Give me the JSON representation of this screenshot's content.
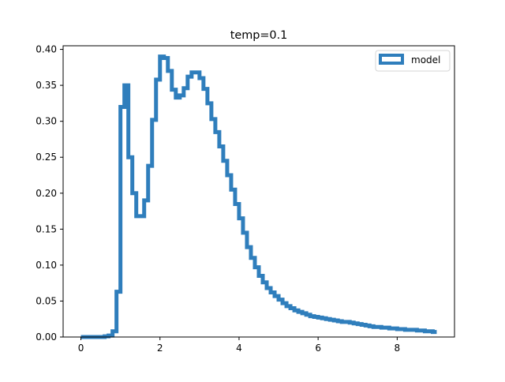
{
  "chart_data": {
    "type": "line",
    "style": "step-histogram",
    "title": "temp=0.1",
    "xlabel": "",
    "ylabel": "",
    "xlim": [
      -0.45,
      9.45
    ],
    "ylim": [
      0,
      0.405
    ],
    "xticks": [
      0,
      2,
      4,
      6,
      8
    ],
    "yticks": [
      0.0,
      0.05,
      0.1,
      0.15,
      0.2,
      0.25,
      0.3,
      0.35,
      0.4
    ],
    "xtick_labels": [
      "0",
      "2",
      "4",
      "6",
      "8"
    ],
    "ytick_labels": [
      "0.00",
      "0.05",
      "0.10",
      "0.15",
      "0.20",
      "0.25",
      "0.30",
      "0.35",
      "0.40"
    ],
    "grid": false,
    "legend_position": "top-right",
    "series": [
      {
        "name": "model",
        "color": "#2f7ebc",
        "bin_start": 0.0,
        "bin_width": 0.1,
        "values": [
          0.0,
          0.0,
          0.0,
          0.0,
          0.0,
          0.0,
          0.001,
          0.002,
          0.008,
          0.063,
          0.32,
          0.35,
          0.25,
          0.2,
          0.168,
          0.168,
          0.19,
          0.238,
          0.302,
          0.358,
          0.39,
          0.388,
          0.37,
          0.344,
          0.333,
          0.336,
          0.346,
          0.362,
          0.368,
          0.368,
          0.36,
          0.345,
          0.325,
          0.303,
          0.285,
          0.265,
          0.245,
          0.225,
          0.205,
          0.185,
          0.165,
          0.145,
          0.125,
          0.11,
          0.097,
          0.085,
          0.076,
          0.068,
          0.062,
          0.057,
          0.052,
          0.047,
          0.043,
          0.04,
          0.037,
          0.035,
          0.033,
          0.031,
          0.029,
          0.028,
          0.027,
          0.026,
          0.025,
          0.024,
          0.023,
          0.022,
          0.021,
          0.021,
          0.02,
          0.019,
          0.018,
          0.017,
          0.016,
          0.015,
          0.014,
          0.014,
          0.013,
          0.013,
          0.012,
          0.012,
          0.011,
          0.011,
          0.01,
          0.01,
          0.01,
          0.009,
          0.009,
          0.008,
          0.008,
          0.007
        ]
      }
    ]
  }
}
